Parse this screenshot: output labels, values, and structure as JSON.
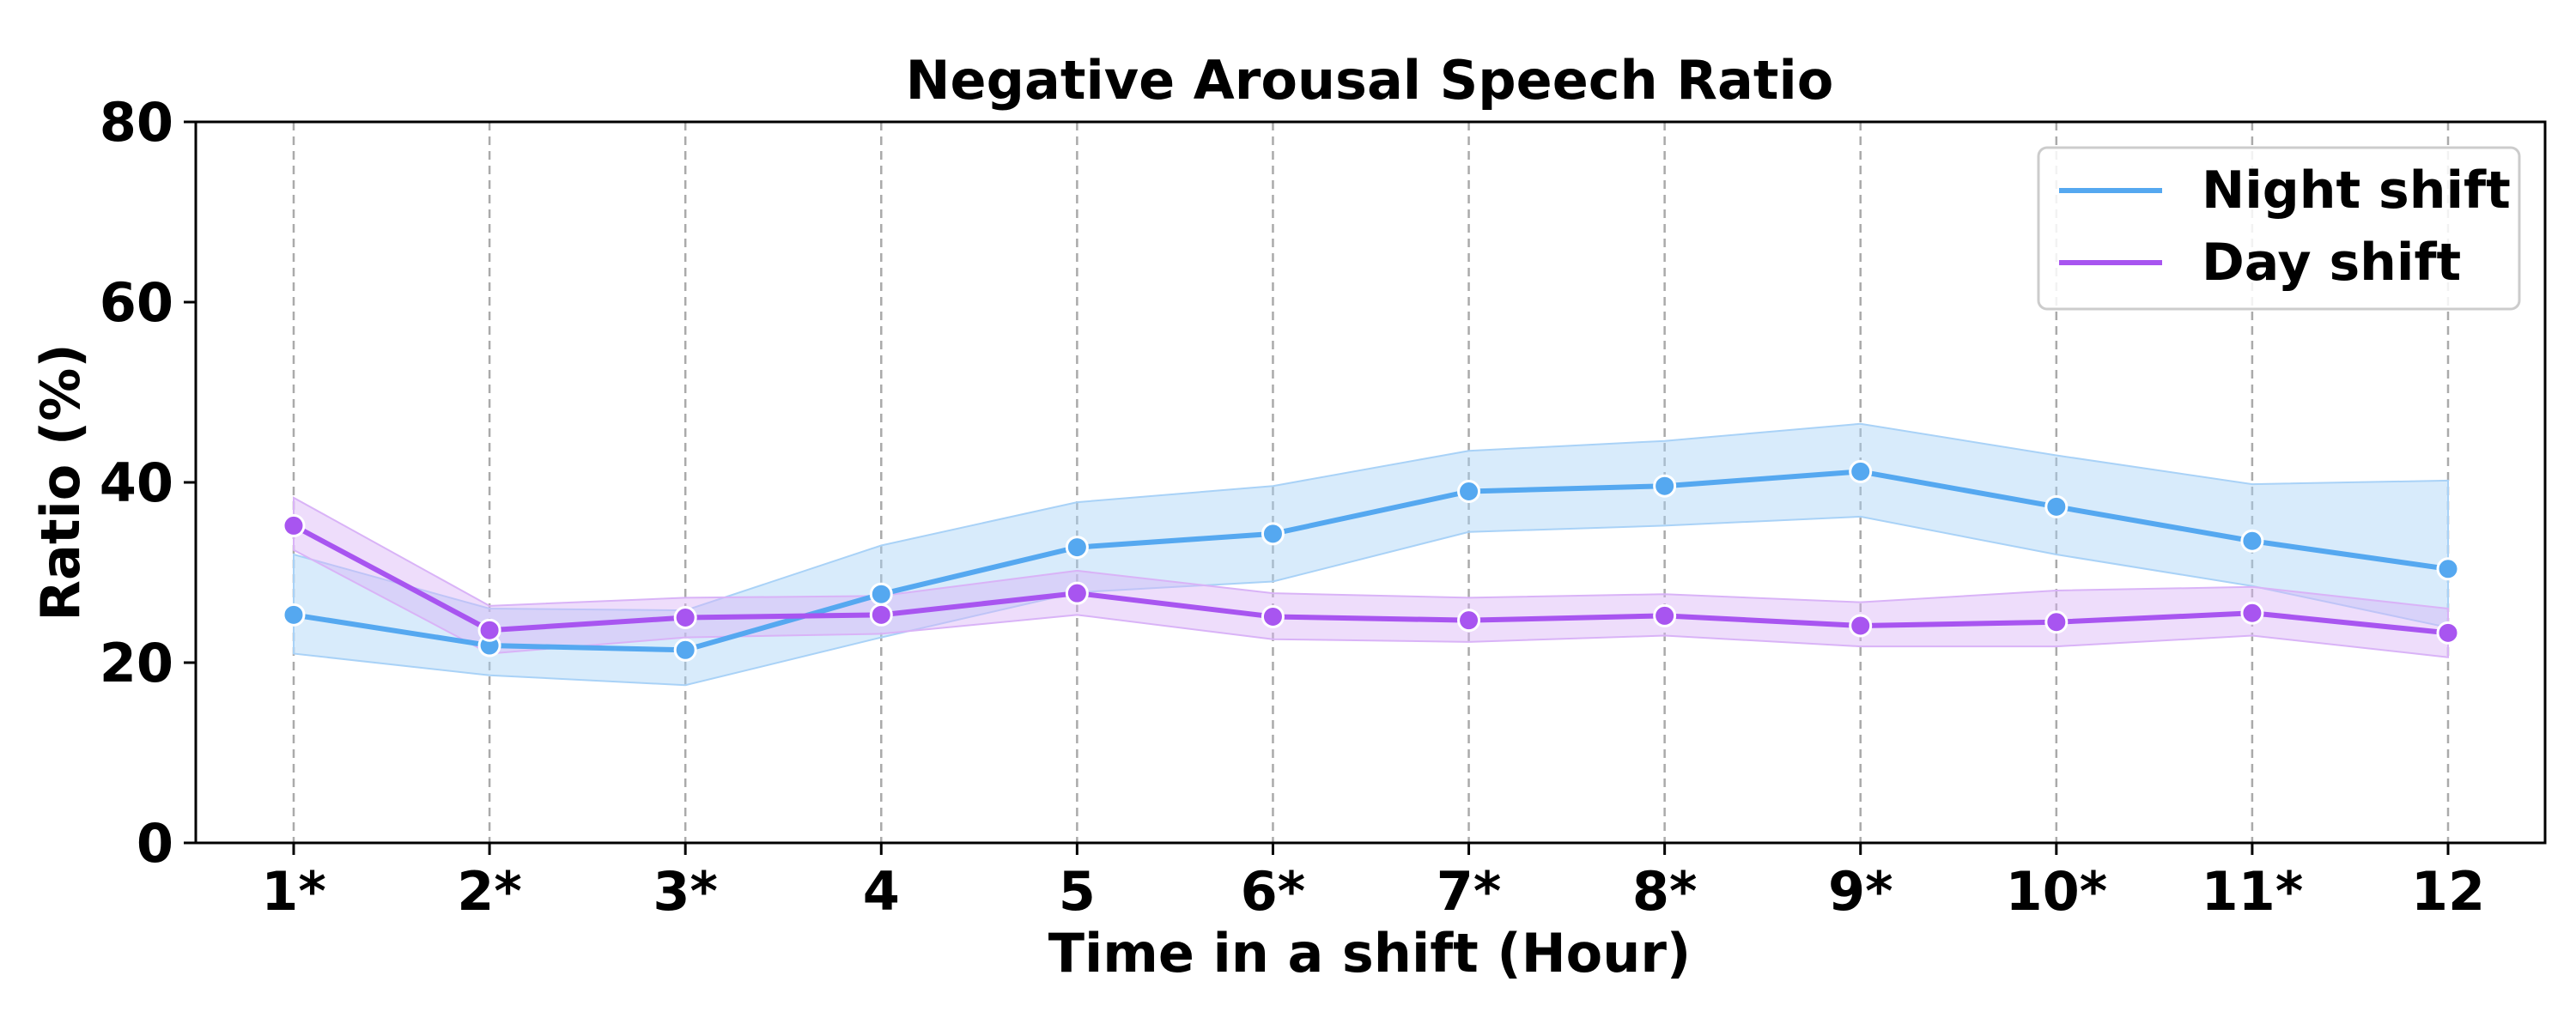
{
  "chart_data": {
    "type": "line",
    "title": "Negative Arousal Speech Ratio",
    "xlabel": "Time in a shift (Hour)",
    "ylabel": "Ratio (%)",
    "categories": [
      "1*",
      "2*",
      "3*",
      "4",
      "5",
      "6*",
      "7*",
      "8*",
      "9*",
      "10*",
      "11*",
      "12"
    ],
    "ylim": [
      0,
      80
    ],
    "yticks": [
      0,
      20,
      40,
      60,
      80
    ],
    "grid": "vertical dashed",
    "legend_position": "top-right",
    "series": [
      {
        "name": "Night shift",
        "color": "#55A8F0",
        "band_color": "#A9D2F7",
        "values": [
          25.3,
          21.9,
          21.4,
          27.6,
          32.8,
          34.3,
          39.0,
          39.6,
          41.2,
          37.3,
          33.5,
          30.4
        ],
        "lower": [
          21.0,
          18.6,
          17.5,
          22.8,
          27.8,
          29.0,
          34.5,
          35.2,
          36.2,
          32.0,
          28.5,
          23.9
        ],
        "upper": [
          32.0,
          26.0,
          25.8,
          33.0,
          37.8,
          39.6,
          43.5,
          44.6,
          46.5,
          43.0,
          39.8,
          40.2
        ]
      },
      {
        "name": "Day shift",
        "color": "#A855F0",
        "band_color": "#D9B3F7",
        "values": [
          35.2,
          23.6,
          25.0,
          25.3,
          27.7,
          25.1,
          24.7,
          25.2,
          24.1,
          24.5,
          25.5,
          23.3
        ],
        "lower": [
          32.5,
          21.0,
          22.8,
          23.2,
          25.3,
          22.6,
          22.3,
          23.0,
          21.8,
          21.8,
          23.0,
          20.6
        ],
        "upper": [
          38.3,
          26.3,
          27.2,
          27.4,
          30.2,
          27.7,
          27.2,
          27.6,
          26.7,
          28.0,
          28.4,
          26.0
        ]
      }
    ]
  }
}
